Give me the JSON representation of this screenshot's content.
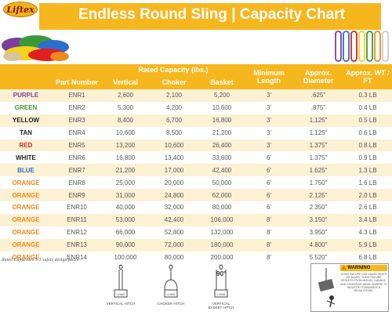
{
  "header": {
    "logo_text": "Liftex",
    "title": "Endless Round Sling | Capacity Chart"
  },
  "table": {
    "group_header": "Rated Capacity (lbs.)",
    "columns": {
      "part_number": "Part Number",
      "vertical": "Vertical",
      "choker": "Choker",
      "basket": "Basket",
      "min_length": "Minimum Length",
      "diameter": "Approx. Diameter",
      "weight": "Approx. WT / FT"
    },
    "rows": [
      {
        "color": "PURPLE",
        "color_hex": "#7b3fa0",
        "part": "ENR1",
        "vertical": "2,600",
        "choker": "2,100",
        "basket": "5,200",
        "length": "3'",
        "diameter": ".625\"",
        "weight": "0.3 LB"
      },
      {
        "color": "GREEN",
        "color_hex": "#3a9a3a",
        "part": "ENR2",
        "vertical": "5,300",
        "choker": "4,200",
        "basket": "10,600",
        "length": "3'",
        "diameter": ".875\"",
        "weight": "0.4 LB"
      },
      {
        "color": "YELLOW",
        "color_hex": "#222222",
        "part": "ENR3",
        "vertical": "8,400",
        "choker": "6,700",
        "basket": "16,800",
        "length": "3'",
        "diameter": "1.125\"",
        "weight": "0.5 LB"
      },
      {
        "color": "TAN",
        "color_hex": "#222222",
        "part": "ENR4",
        "vertical": "10,600",
        "choker": "8,500",
        "basket": "21,200",
        "length": "3'",
        "diameter": "1.125\"",
        "weight": "0.6 LB"
      },
      {
        "color": "RED",
        "color_hex": "#e02020",
        "part": "ENR5",
        "vertical": "13,200",
        "choker": "10,600",
        "basket": "26,400",
        "length": "3'",
        "diameter": "1.375\"",
        "weight": "0.8 LB"
      },
      {
        "color": "WHITE",
        "color_hex": "#222222",
        "part": "ENR6",
        "vertical": "16,800",
        "choker": "13,400",
        "basket": "33,600",
        "length": "6'",
        "diameter": "1.375\"",
        "weight": "0.9 LB"
      },
      {
        "color": "BLUE",
        "color_hex": "#2a6fd0",
        "part": "ENR7",
        "vertical": "21,200",
        "choker": "17,000",
        "basket": "42,400",
        "length": "6'",
        "diameter": "1.625\"",
        "weight": "1.3 LB"
      },
      {
        "color": "ORANGE",
        "color_hex": "#f08a1c",
        "part": "ENR8",
        "vertical": "25,000",
        "choker": "20,000",
        "basket": "50,000",
        "length": "6'",
        "diameter": "1.750\"",
        "weight": "1.6 LB"
      },
      {
        "color": "ORANGE",
        "color_hex": "#f08a1c",
        "part": "ENR9",
        "vertical": "31,000",
        "choker": "24,800",
        "basket": "62,000",
        "length": "6'",
        "diameter": "2.125\"",
        "weight": "2.0 LB"
      },
      {
        "color": "ORANGE",
        "color_hex": "#f08a1c",
        "part": "ENR10",
        "vertical": "40,000",
        "choker": "32,000",
        "basket": "80,000",
        "length": "6'",
        "diameter": "2.350\"",
        "weight": "2.6 LB"
      },
      {
        "color": "ORANGE",
        "color_hex": "#f08a1c",
        "part": "ENR11",
        "vertical": "53,000",
        "choker": "42,400",
        "basket": "106,000",
        "length": "8'",
        "diameter": "3.150\"",
        "weight": "3.4 LB"
      },
      {
        "color": "ORANGE",
        "color_hex": "#f08a1c",
        "part": "ENR12",
        "vertical": "66,000",
        "choker": "52,800",
        "basket": "132,000",
        "length": "8'",
        "diameter": "3.950\"",
        "weight": "4.3 LB"
      },
      {
        "color": "ORANGE",
        "color_hex": "#f08a1c",
        "part": "ENR13",
        "vertical": "90,000",
        "choker": "72,000",
        "basket": "180,000",
        "length": "8'",
        "diameter": "4.800\"",
        "weight": "5.9 LB"
      },
      {
        "color": "ORANGE",
        "color_hex": "#f08a1c",
        "part": "ENR14",
        "vertical": "100,000",
        "choker": "80,000",
        "basket": "200,000",
        "length": "8'",
        "diameter": "5.520\"",
        "weight": "6.8 LB"
      }
    ]
  },
  "footnote": "Rated Capacities 5:1 safety design factor",
  "hitches": {
    "load_label": "LOAD",
    "vertical": "VERTICAL HITCH",
    "choker": "CHOKER HITCH",
    "basket": "VERTICAL BASKET HITCH",
    "angle": "90°"
  },
  "warning": {
    "title": "WARNING",
    "text": "SLING FAILURE CAN CAUSE DEATH OR INJURY. SLING FAILURE RESULTS FROM MISUSE, DAMAGE, AND EXCESSIVE WEAR. ADHERE TO INDUSTRY STANDARDS & REGULATIONS."
  },
  "colors": {
    "brand_yellow": "#f6b61e",
    "row_tint": "#fdf1d4"
  }
}
